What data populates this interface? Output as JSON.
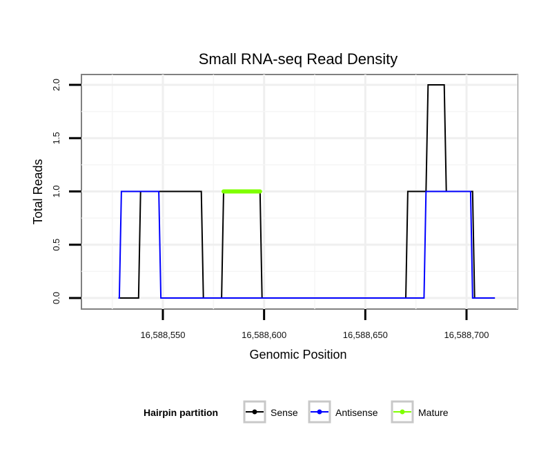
{
  "chart_data": {
    "type": "line",
    "title": "Small RNA-seq Read Density",
    "xlabel": "Genomic Position",
    "ylabel": "Total Reads",
    "xlim": [
      16588518,
      16588718
    ],
    "ylim": [
      -0.1,
      2.1
    ],
    "x_ticks": [
      16588550,
      16588600,
      16588650,
      16588700
    ],
    "x_tick_labels": [
      "16,588,550",
      "16,588,600",
      "16,588,650",
      "16,588,700"
    ],
    "y_ticks": [
      0.0,
      0.5,
      1.0,
      1.5,
      2.0
    ],
    "y_tick_labels": [
      "0.0",
      "0.5",
      "1.0",
      "1.5",
      "2.0"
    ],
    "grid": true,
    "legend": {
      "title": "Hairpin partition",
      "position": "bottom"
    },
    "series": [
      {
        "name": "Sense",
        "color": "#000000",
        "x": [
          16588528,
          16588538,
          16588539,
          16588569,
          16588570,
          16588579,
          16588580,
          16588598,
          16588599,
          16588670,
          16588671,
          16588680,
          16588681,
          16588689,
          16588690,
          16588703,
          16588704,
          16588714
        ],
        "y": [
          0,
          0,
          1,
          1,
          0,
          0,
          1,
          1,
          0,
          0,
          1,
          1,
          2,
          2,
          1,
          1,
          0,
          0
        ]
      },
      {
        "name": "Antisense",
        "color": "#0000ff",
        "x": [
          16588528,
          16588528.5,
          16588529.5,
          16588548,
          16588549,
          16588569,
          16588570,
          16588579,
          16588580,
          16588598,
          16588599,
          16588670,
          16588671,
          16588679,
          16588680,
          16588702,
          16588703,
          16588714
        ],
        "y": [
          0,
          0,
          1,
          1,
          0,
          0,
          0,
          0,
          0,
          0,
          0,
          0,
          0,
          0,
          1,
          1,
          0,
          0
        ]
      },
      {
        "name": "Mature",
        "color": "#7fff00",
        "x": [
          16588580,
          16588598
        ],
        "y": [
          1,
          1
        ]
      }
    ]
  }
}
